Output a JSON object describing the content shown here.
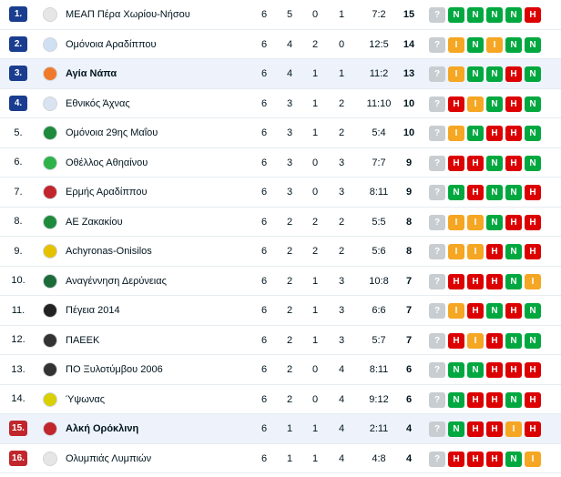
{
  "colors": {
    "rank_promo": "#1a3d8f",
    "rank_relegation": "#c1262d",
    "win": "#00a83f",
    "draw": "#f5a623",
    "loss": "#dc0000",
    "unknown": "#c8cdd1",
    "highlight_row": "#eef3fb"
  },
  "standings": [
    {
      "rank": "1.",
      "team": "ΜΕΑΠ Πέρα Χωρίου-Νήσου",
      "p": "6",
      "w": "5",
      "d": "0",
      "l": "1",
      "goals": "7:2",
      "pts": "15",
      "form": [
        "?",
        "N",
        "N",
        "N",
        "N",
        "H"
      ],
      "logo_color": "#e6e6e6",
      "logo_icon": "crest-red-icon",
      "rank_style": "promo",
      "highlight": false
    },
    {
      "rank": "2.",
      "team": "Ομόνοια Αραδίππου",
      "p": "6",
      "w": "4",
      "d": "2",
      "l": "0",
      "goals": "12:5",
      "pts": "14",
      "form": [
        "?",
        "I",
        "N",
        "I",
        "N",
        "N"
      ],
      "logo_color": "#cfe0f3",
      "logo_icon": "crest-blue-icon",
      "rank_style": "promo",
      "highlight": false
    },
    {
      "rank": "3.",
      "team": "Αγία Νάπα",
      "p": "6",
      "w": "4",
      "d": "1",
      "l": "1",
      "goals": "11:2",
      "pts": "13",
      "form": [
        "?",
        "I",
        "N",
        "N",
        "H",
        "N"
      ],
      "logo_color": "#f07a2b",
      "logo_icon": "crest-orange-icon",
      "rank_style": "promo",
      "highlight": true
    },
    {
      "rank": "4.",
      "team": "Εθνικός Άχνας",
      "p": "6",
      "w": "3",
      "d": "1",
      "l": "2",
      "goals": "11:10",
      "pts": "10",
      "form": [
        "?",
        "H",
        "I",
        "N",
        "H",
        "N"
      ],
      "logo_color": "#d9e3f1",
      "logo_icon": "crest-blue-icon",
      "rank_style": "promo",
      "highlight": false
    },
    {
      "rank": "5.",
      "team": "Ομόνοια 29ης Μαΐου",
      "p": "6",
      "w": "3",
      "d": "1",
      "l": "2",
      "goals": "5:4",
      "pts": "10",
      "form": [
        "?",
        "I",
        "N",
        "H",
        "H",
        "N"
      ],
      "logo_color": "#1e8a3c",
      "logo_icon": "crest-green-icon",
      "rank_style": "plain",
      "highlight": false
    },
    {
      "rank": "6.",
      "team": "Οθέλλος Αθηαίνου",
      "p": "6",
      "w": "3",
      "d": "0",
      "l": "3",
      "goals": "7:7",
      "pts": "9",
      "form": [
        "?",
        "H",
        "H",
        "N",
        "H",
        "N"
      ],
      "logo_color": "#2db34a",
      "logo_icon": "crest-green-icon",
      "rank_style": "plain",
      "highlight": false
    },
    {
      "rank": "7.",
      "team": "Ερμής Αραδίππου",
      "p": "6",
      "w": "3",
      "d": "0",
      "l": "3",
      "goals": "8:11",
      "pts": "9",
      "form": [
        "?",
        "N",
        "H",
        "N",
        "N",
        "H"
      ],
      "logo_color": "#c1262d",
      "logo_icon": "crest-red-icon",
      "rank_style": "plain",
      "highlight": false
    },
    {
      "rank": "8.",
      "team": "ΑΕ Ζακακίου",
      "p": "6",
      "w": "2",
      "d": "2",
      "l": "2",
      "goals": "5:5",
      "pts": "8",
      "form": [
        "?",
        "I",
        "I",
        "N",
        "H",
        "H"
      ],
      "logo_color": "#1e8a3c",
      "logo_icon": "crest-green-icon",
      "rank_style": "plain",
      "highlight": false
    },
    {
      "rank": "9.",
      "team": "Achyronas-Onisilos",
      "p": "6",
      "w": "2",
      "d": "2",
      "l": "2",
      "goals": "5:6",
      "pts": "8",
      "form": [
        "?",
        "I",
        "I",
        "H",
        "N",
        "H"
      ],
      "logo_color": "#e5c100",
      "logo_icon": "crest-yellow-icon",
      "rank_style": "plain",
      "highlight": false
    },
    {
      "rank": "10.",
      "team": "Αναγέννηση Δερύνειας",
      "p": "6",
      "w": "2",
      "d": "1",
      "l": "3",
      "goals": "10:8",
      "pts": "7",
      "form": [
        "?",
        "H",
        "H",
        "H",
        "N",
        "I"
      ],
      "logo_color": "#1e6b3a",
      "logo_icon": "crest-green-icon",
      "rank_style": "plain",
      "highlight": false
    },
    {
      "rank": "11.",
      "team": "Πέγεια 2014",
      "p": "6",
      "w": "2",
      "d": "1",
      "l": "3",
      "goals": "6:6",
      "pts": "7",
      "form": [
        "?",
        "I",
        "H",
        "N",
        "H",
        "N"
      ],
      "logo_color": "#222222",
      "logo_icon": "crest-yellow-icon",
      "rank_style": "plain",
      "highlight": false
    },
    {
      "rank": "12.",
      "team": "ΠΑΕΕΚ",
      "p": "6",
      "w": "2",
      "d": "1",
      "l": "3",
      "goals": "5:7",
      "pts": "7",
      "form": [
        "?",
        "H",
        "I",
        "H",
        "N",
        "N"
      ],
      "logo_color": "#333333",
      "logo_icon": "crest-black-icon",
      "rank_style": "plain",
      "highlight": false
    },
    {
      "rank": "13.",
      "team": "ΠΟ Ξυλοτύμβου 2006",
      "p": "6",
      "w": "2",
      "d": "0",
      "l": "4",
      "goals": "8:11",
      "pts": "6",
      "form": [
        "?",
        "N",
        "N",
        "H",
        "H",
        "H"
      ],
      "logo_color": "#333333",
      "logo_icon": "crest-black-icon",
      "rank_style": "plain",
      "highlight": false
    },
    {
      "rank": "14.",
      "team": "Ύψωνας",
      "p": "6",
      "w": "2",
      "d": "0",
      "l": "4",
      "goals": "9:12",
      "pts": "6",
      "form": [
        "?",
        "N",
        "H",
        "H",
        "N",
        "H"
      ],
      "logo_color": "#d8d000",
      "logo_icon": "crest-yellow-icon",
      "rank_style": "plain",
      "highlight": false
    },
    {
      "rank": "15.",
      "team": "Αλκή Ορόκλινη",
      "p": "6",
      "w": "1",
      "d": "1",
      "l": "4",
      "goals": "2:11",
      "pts": "4",
      "form": [
        "?",
        "N",
        "H",
        "H",
        "I",
        "H"
      ],
      "logo_color": "#c1262d",
      "logo_icon": "crest-red-icon",
      "rank_style": "relegation",
      "highlight": true
    },
    {
      "rank": "16.",
      "team": "Ολυμπιάς Λυμπιών",
      "p": "6",
      "w": "1",
      "d": "1",
      "l": "4",
      "goals": "4:8",
      "pts": "4",
      "form": [
        "?",
        "H",
        "H",
        "H",
        "N",
        "I"
      ],
      "logo_color": "#e6e6e6",
      "logo_icon": "crest-red-icon",
      "rank_style": "relegation",
      "highlight": false
    }
  ]
}
